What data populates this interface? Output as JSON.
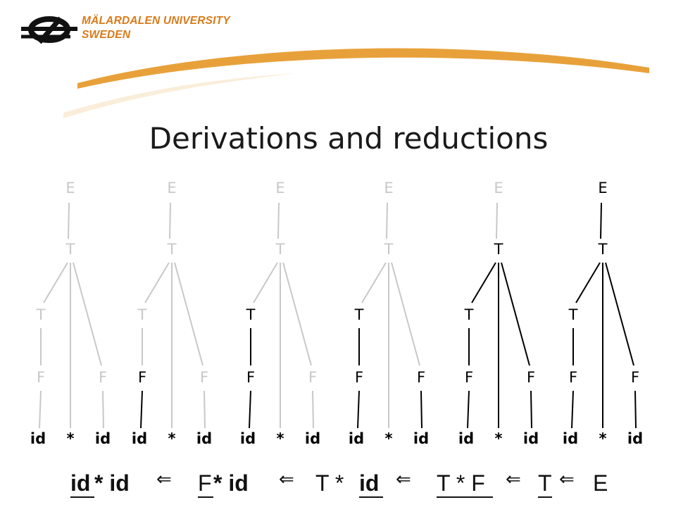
{
  "header": {
    "brand_line1": "MÄLARDALEN UNIVERSITY",
    "brand_line2": "SWEDEN",
    "colors": {
      "brand": "#d97a1a",
      "swoosh": "#e8a13a"
    }
  },
  "slide": {
    "title": "Derivations and reductions"
  },
  "diagram": {
    "tree_count": 6,
    "node_labels": {
      "root": "E",
      "mid": "T",
      "left_t": "T",
      "left_f": "F",
      "right_f": "F"
    },
    "leaf_labels": [
      "id",
      "*",
      "id"
    ],
    "colors": {
      "active": "#000000",
      "inactive": "#c8c8c8"
    },
    "trees": [
      {
        "index": 1,
        "active_nodes": []
      },
      {
        "index": 2,
        "active_nodes": [
          "left_f"
        ]
      },
      {
        "index": 3,
        "active_nodes": [
          "left_f",
          "left_t"
        ]
      },
      {
        "index": 4,
        "active_nodes": [
          "left_f",
          "left_t",
          "right_f"
        ]
      },
      {
        "index": 5,
        "active_nodes": [
          "left_f",
          "left_t",
          "right_f",
          "mid"
        ]
      },
      {
        "index": 6,
        "active_nodes": [
          "left_f",
          "left_t",
          "right_f",
          "mid",
          "root"
        ]
      }
    ]
  },
  "sequence": {
    "s1_a": "id",
    "s1_b": " * id",
    "arrow": "⇐",
    "s2_a": "F",
    "s2_b": " * id",
    "s3_a": "T * ",
    "s3_b": "id",
    "s4": "T * F",
    "s5": "T",
    "s6": "E"
  }
}
